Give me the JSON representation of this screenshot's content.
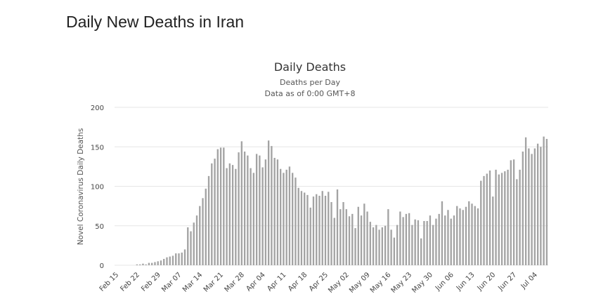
{
  "page": {
    "title": "Daily New Deaths in Iran"
  },
  "colors": {
    "bar": "#a3a3a3",
    "grid": "#e6e6e6",
    "text": "#333333"
  },
  "chart_data": {
    "type": "bar",
    "title": "Daily Deaths",
    "subtitle": "Deaths per Day",
    "subtitle2": "Data as of 0:00 GMT+8",
    "xlabel": "",
    "ylabel": "Novel Coronavirus Daily Deaths",
    "ylim": [
      0,
      200
    ],
    "yticks": [
      0,
      50,
      100,
      150,
      200
    ],
    "grid": true,
    "start_date": "Feb 15",
    "tick_labels": [
      "Feb 15",
      "Feb 22",
      "Feb 29",
      "Mar 07",
      "Mar 14",
      "Mar 21",
      "Mar 28",
      "Apr 04",
      "Apr 11",
      "Apr 18",
      "Apr 25",
      "May 02",
      "May 09",
      "May 16",
      "May 23",
      "May 30",
      "Jun 06",
      "Jun 13",
      "Jun 20",
      "Jun 27",
      "Jul 04"
    ],
    "tick_step_days": 7,
    "values": [
      0,
      0,
      0,
      0,
      0,
      0,
      0,
      1,
      1,
      2,
      1,
      3,
      3,
      4,
      5,
      6,
      8,
      10,
      11,
      12,
      15,
      15,
      16,
      20,
      48,
      43,
      54,
      63,
      75,
      85,
      97,
      113,
      129,
      135,
      147,
      149,
      149,
      123,
      129,
      127,
      122,
      143,
      157,
      144,
      139,
      123,
      117,
      141,
      139,
      124,
      134,
      158,
      151,
      136,
      134,
      122,
      117,
      121,
      125,
      117,
      111,
      98,
      94,
      92,
      89,
      73,
      87,
      90,
      88,
      94,
      88,
      93,
      80,
      60,
      96,
      71,
      80,
      71,
      62,
      65,
      47,
      74,
      63,
      78,
      68,
      55,
      48,
      51,
      45,
      48,
      50,
      71,
      45,
      35,
      51,
      68,
      61,
      65,
      66,
      51,
      58,
      57,
      34,
      56,
      56,
      63,
      51,
      59,
      65,
      81,
      63,
      70,
      59,
      63,
      75,
      72,
      70,
      74,
      81,
      78,
      75,
      72,
      107,
      113,
      116,
      120,
      87,
      121,
      115,
      117,
      119,
      121,
      133,
      134,
      109,
      121,
      144,
      162,
      148,
      141,
      148,
      154,
      150,
      163,
      160
    ]
  }
}
